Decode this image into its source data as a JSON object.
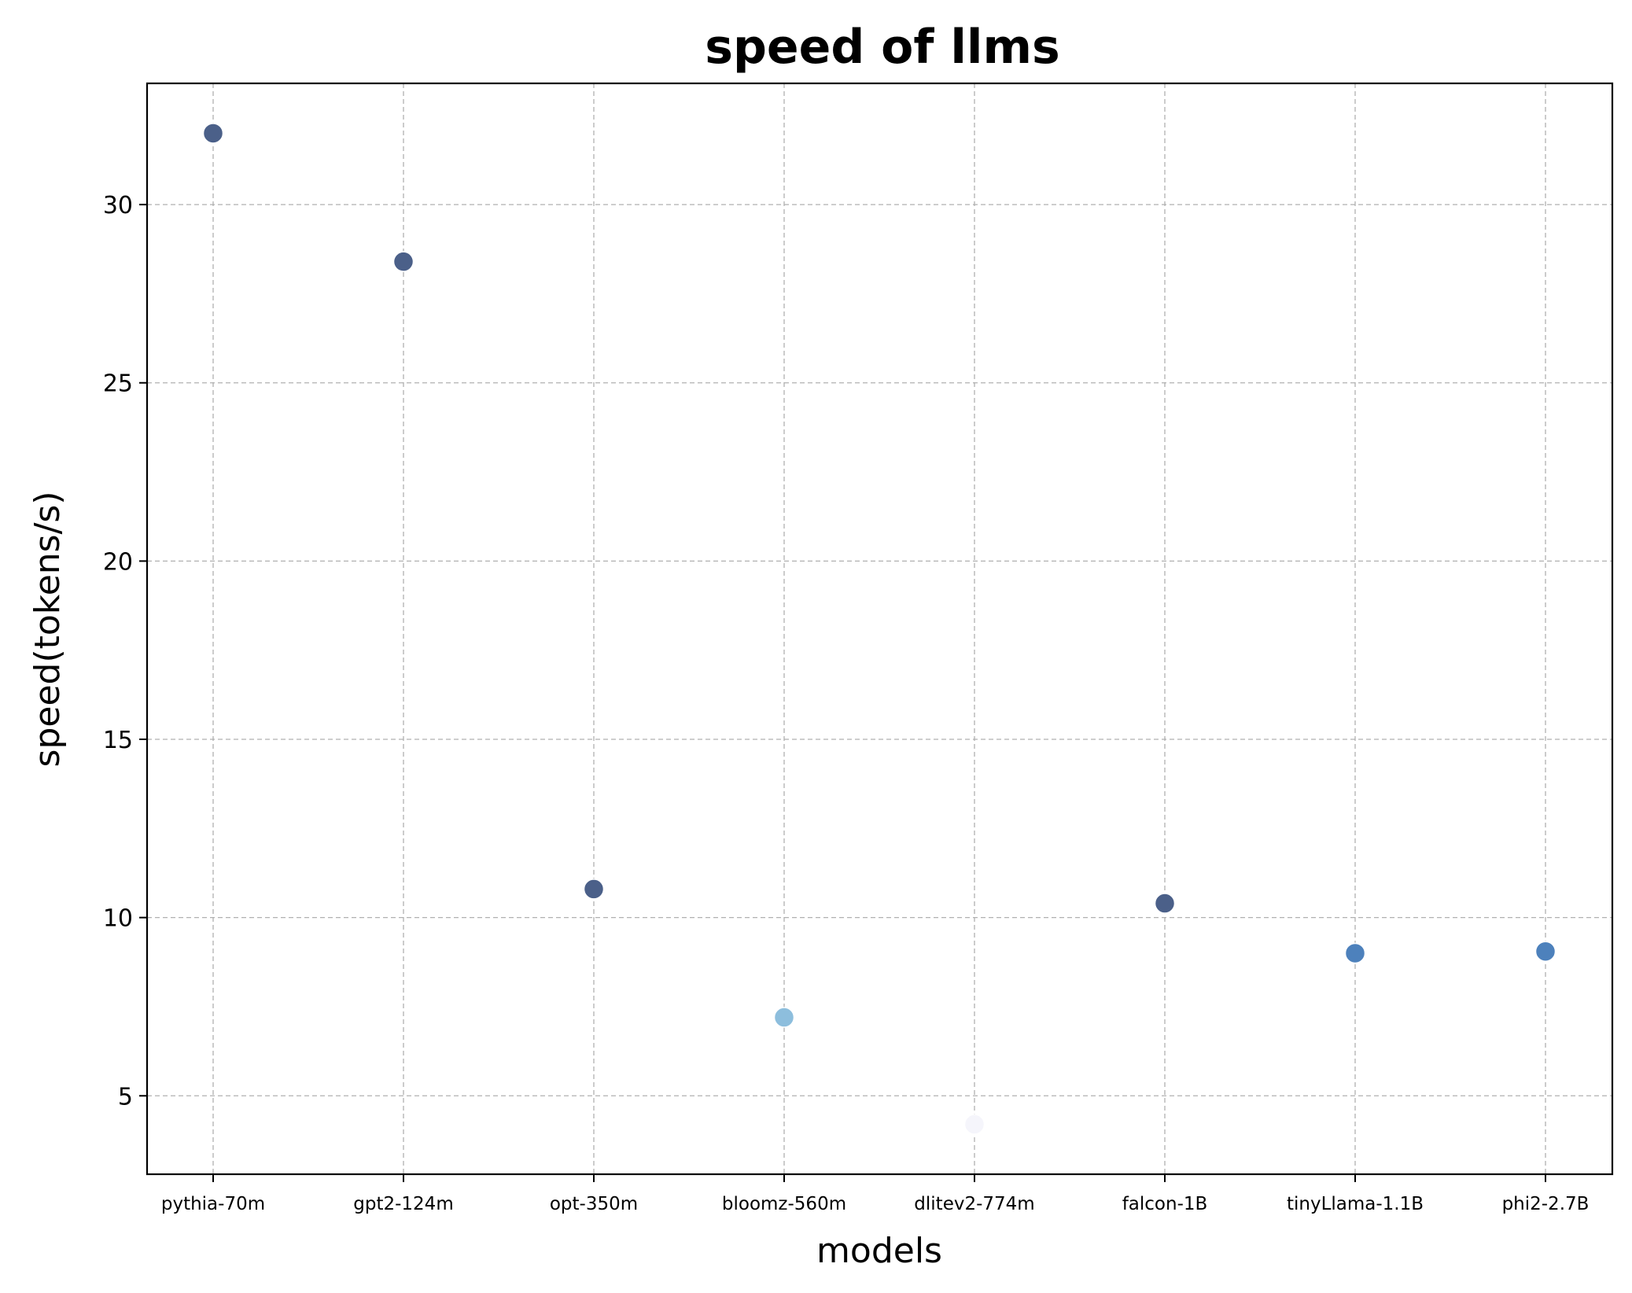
{
  "chart_data": {
    "type": "scatter",
    "title": "speed of llms",
    "xlabel": "models",
    "ylabel": "speed(tokens/s)",
    "categories": [
      "pythia-70m",
      "gpt2-124m",
      "opt-350m",
      "bloomz-560m",
      "dlitev2-774m",
      "falcon-1B",
      "tinyLlama-1.1B",
      "phi2-2.7B"
    ],
    "values": [
      32.0,
      28.4,
      10.8,
      7.2,
      4.2,
      10.4,
      9.0,
      9.05
    ],
    "colors": [
      "#4b6089",
      "#4b6089",
      "#4b6089",
      "#8dbedd",
      "#f5f5fb",
      "#4b6089",
      "#4d81bc",
      "#4d81bc"
    ],
    "ylim": [
      2.8,
      33.4
    ],
    "yticks": [
      5,
      10,
      15,
      20,
      25,
      30
    ],
    "grid": true,
    "legend": "none"
  }
}
